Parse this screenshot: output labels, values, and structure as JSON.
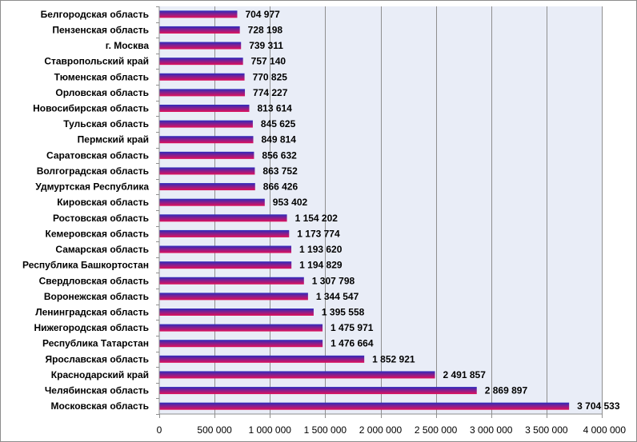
{
  "chart_data": {
    "type": "bar",
    "orientation": "horizontal",
    "categories": [
      "Белгородская область",
      "Пензенская область",
      "г. Москва",
      "Ставропольский край",
      "Тюменская область",
      "Орловская область",
      "Новосибирская область",
      "Тульская область",
      "Пермский край",
      "Саратовская область",
      "Волгоградская область",
      "Удмуртская Республика",
      "Кировская область",
      "Ростовская область",
      "Кемеровская область",
      "Самарская область",
      "Республика Башкортостан",
      "Свердловская область",
      "Воронежская область",
      "Ленинградская область",
      "Нижегородская область",
      "Республика Татарстан",
      "Ярославская область",
      "Краснодарский край",
      "Челябинская область",
      "Московская область"
    ],
    "values": [
      704977,
      728198,
      739311,
      757140,
      770825,
      774227,
      813614,
      845625,
      849814,
      856632,
      863752,
      866426,
      953402,
      1154202,
      1173774,
      1193620,
      1194829,
      1307798,
      1344547,
      1395558,
      1475971,
      1476664,
      1852921,
      2491857,
      2869897,
      3704533
    ],
    "value_labels": [
      "704 977",
      "728 198",
      "739 311",
      "757 140",
      "770 825",
      "774 227",
      "813 614",
      "845 625",
      "849 814",
      "856 632",
      "863 752",
      "866 426",
      "953 402",
      "1 154 202",
      "1 173 774",
      "1 193 620",
      "1 194 829",
      "1 307 798",
      "1 344 547",
      "1 395 558",
      "1 475 971",
      "1 476 664",
      "1 852 921",
      "2 491 857",
      "2 869 897",
      "3 704 533"
    ],
    "xlim": [
      0,
      4000000
    ],
    "x_ticks": [
      0,
      500000,
      1000000,
      1500000,
      2000000,
      2500000,
      3000000,
      3500000,
      4000000
    ],
    "x_tick_labels": [
      "0",
      "500 000",
      "1 000 000",
      "1 500 000",
      "2 000 000",
      "2 500 000",
      "3 000 000",
      "3 500 000",
      "4 000 000"
    ],
    "grid": "vertical",
    "legend": "none",
    "title": "",
    "xlabel": "",
    "ylabel": ""
  },
  "colors": {
    "plot_background": "#e9edf7",
    "grid_line": "#8f8f8f",
    "bar_top": "#2b2bbd",
    "bar_bottom": "#e0105a",
    "border": "#8c8c8c"
  }
}
